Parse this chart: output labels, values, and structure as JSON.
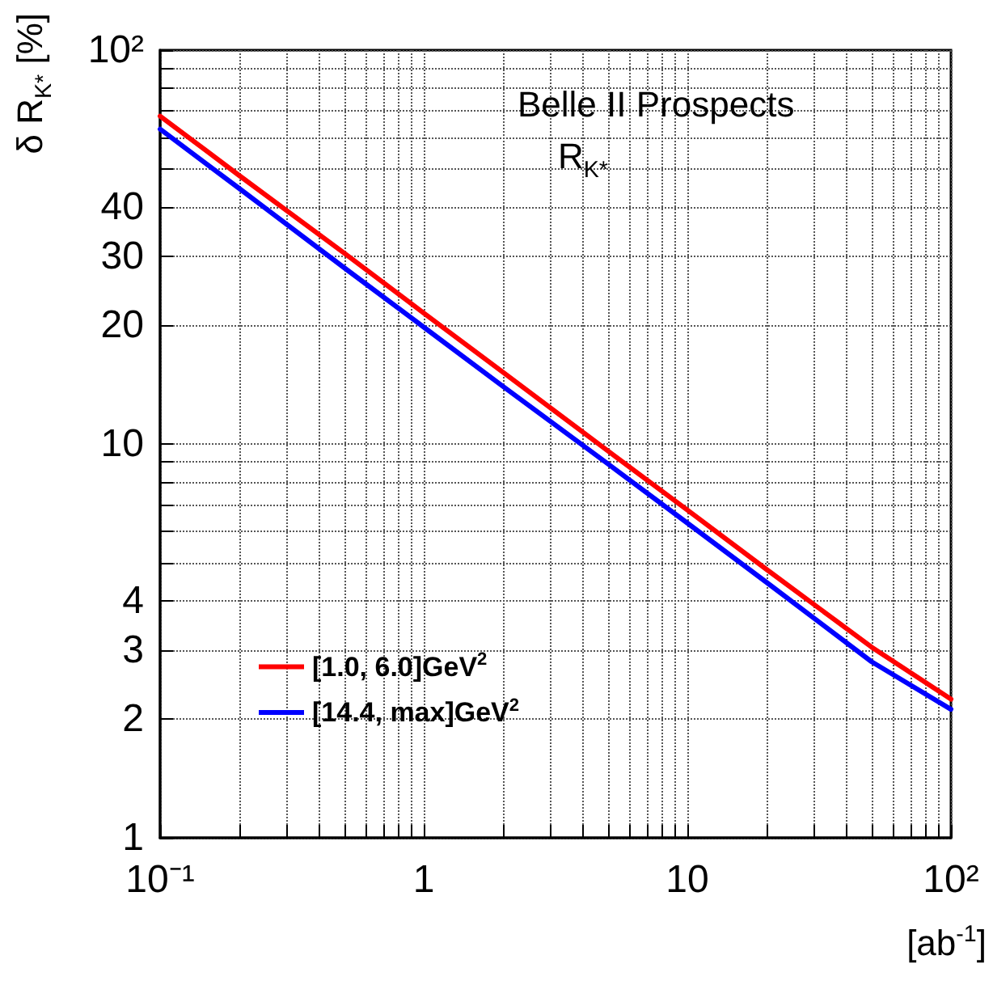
{
  "chart_data": {
    "type": "line",
    "xlabel": "[ab$^{-1}$]",
    "ylabel": "δ R$_{K*}$ [%]",
    "annotations": [
      "Belle II Prospects",
      "R$_{K*}$"
    ],
    "log": "xy",
    "grid": true,
    "legend": "bottom left",
    "marker": "none",
    "line_style": "solid",
    "x": [
      0.1,
      0.2,
      0.5,
      1,
      2,
      5,
      10,
      20,
      50,
      100
    ],
    "series": [
      {
        "name": "[1.0, 6.0]GeV$^{2}$",
        "color": "#ff0000",
        "values": [
          68,
          48,
          30.5,
          21.5,
          15.2,
          9.6,
          6.8,
          4.8,
          3.05,
          2.25
        ]
      },
      {
        "name": "[14.4, max]GeV$^{2}$",
        "color": "#0000ff",
        "values": [
          63,
          44.5,
          28,
          19.8,
          14,
          8.9,
          6.3,
          4.45,
          2.8,
          2.12
        ]
      }
    ],
    "xlim": [
      0.1,
      100
    ],
    "xticks": [
      {
        "value": 0.1,
        "label": "10⁻¹"
      },
      {
        "value": 0.2,
        "label": null
      },
      {
        "value": 0.3,
        "label": null
      },
      {
        "value": 0.4,
        "label": null
      },
      {
        "value": 0.5,
        "label": null
      },
      {
        "value": 0.6,
        "label": null
      },
      {
        "value": 0.7,
        "label": null
      },
      {
        "value": 0.8,
        "label": null
      },
      {
        "value": 0.9,
        "label": null
      },
      1,
      {
        "value": 2,
        "label": null
      },
      {
        "value": 3,
        "label": null
      },
      {
        "value": 4,
        "label": null
      },
      {
        "value": 5,
        "label": null
      },
      {
        "value": 6,
        "label": null
      },
      {
        "value": 7,
        "label": null
      },
      {
        "value": 8,
        "label": null
      },
      {
        "value": 9,
        "label": null
      },
      10,
      {
        "value": 20,
        "label": null
      },
      {
        "value": 30,
        "label": null
      },
      {
        "value": 40,
        "label": null
      },
      {
        "value": 50,
        "label": null
      },
      {
        "value": 60,
        "label": null
      },
      {
        "value": 70,
        "label": null
      },
      {
        "value": 80,
        "label": null
      },
      {
        "value": 90,
        "label": null
      },
      {
        "value": 100,
        "label": "10²"
      }
    ],
    "ylim": [
      1,
      100
    ],
    "yticks": [
      1,
      2,
      3,
      4,
      {
        "value": 5,
        "label": null
      },
      {
        "value": 6,
        "label": null
      },
      {
        "value": 7,
        "label": null
      },
      {
        "value": 8,
        "label": null
      },
      {
        "value": 9,
        "label": null
      },
      10,
      20,
      30,
      40,
      {
        "value": 50,
        "label": null
      },
      {
        "value": 60,
        "label": null
      },
      {
        "value": 70,
        "label": null
      },
      {
        "value": 80,
        "label": null
      },
      {
        "value": 90,
        "label": null
      },
      {
        "value": 100,
        "label": "10²"
      }
    ]
  }
}
